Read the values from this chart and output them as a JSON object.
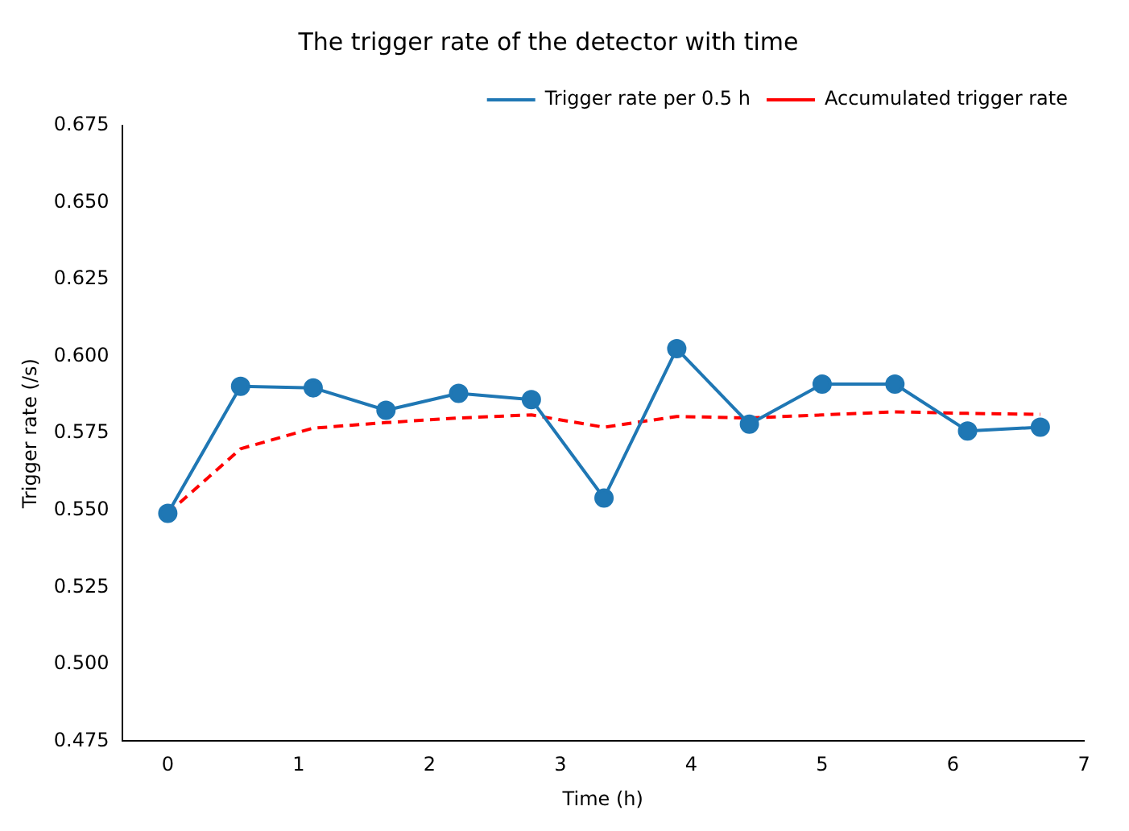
{
  "chart_data": {
    "type": "line",
    "title": "The trigger rate of the detector with time",
    "xlabel": "Time (h)",
    "ylabel": "Trigger rate (/s)",
    "x": [
      0,
      0.556,
      1.111,
      1.667,
      2.222,
      2.778,
      3.333,
      3.889,
      4.444,
      5,
      5.556,
      6.111,
      6.667
    ],
    "series": [
      {
        "name": "Trigger rate per 0.5 h",
        "color": "#1f77b4",
        "marker": "circle",
        "line_style": "solid",
        "values": [
          0.549,
          0.5903,
          0.5898,
          0.5825,
          0.588,
          0.586,
          0.554,
          0.6025,
          0.578,
          0.591,
          0.591,
          0.5758,
          0.577
        ]
      },
      {
        "name": "Accumulated trigger rate",
        "color": "#ff0000",
        "marker": "none",
        "line_style": "dashed",
        "values": [
          0.549,
          0.57,
          0.5767,
          0.5785,
          0.58,
          0.581,
          0.577,
          0.5805,
          0.58,
          0.581,
          0.582,
          0.5815,
          0.5812
        ]
      }
    ],
    "xlim": [
      -0.35,
      7
    ],
    "xticks": [
      0,
      1,
      2,
      3,
      4,
      5,
      6,
      7
    ],
    "ylim": [
      0.475,
      0.675
    ],
    "yticks": [
      {
        "value": 0.475,
        "label": "0.475"
      },
      {
        "value": 0.5,
        "label": "0.500"
      },
      {
        "value": 0.525,
        "label": "0.525"
      },
      {
        "value": 0.55,
        "label": "0.550"
      },
      {
        "value": 0.575,
        "label": "0.575"
      },
      {
        "value": 0.6,
        "label": "0.600"
      },
      {
        "value": 0.625,
        "label": "0.625"
      },
      {
        "value": 0.65,
        "label": "0.650"
      },
      {
        "value": 0.675,
        "label": "0.675"
      }
    ],
    "grid": false,
    "legend": "top right"
  }
}
